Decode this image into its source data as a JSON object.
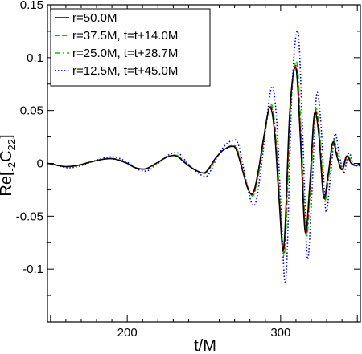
{
  "chart_data": {
    "type": "line",
    "title": "",
    "xlabel": "t/M",
    "ylabel": "Re[",
    "ylabel_sub_pre": "-2",
    "ylabel_mid": "C",
    "ylabel_sub_post": "22",
    "ylabel_close": "]",
    "xlim": [
      148,
      352
    ],
    "ylim": [
      -0.15,
      0.15
    ],
    "xticks": [
      {
        "value": 200,
        "label": "200"
      },
      {
        "value": 250,
        "label": ""
      },
      {
        "value": 300,
        "label": "300"
      }
    ],
    "yticks": [
      {
        "value": 0.15,
        "label": "0.15"
      },
      {
        "value": 0.1,
        "label": "0.1"
      },
      {
        "value": 0.05,
        "label": "0.05"
      },
      {
        "value": 0,
        "label": "0"
      },
      {
        "value": -0.05,
        "label": "-0.05"
      },
      {
        "value": -0.1,
        "label": "-0.1"
      }
    ],
    "grid": false,
    "legend_position": "top-left",
    "series": [
      {
        "name": "r=50.0M",
        "color": "#000000",
        "dash": "solid",
        "amp": 1.0,
        "shift": 0.0
      },
      {
        "name": "r=37.5M, t=t+14.0M",
        "color": "#e00000",
        "dash": "dashed",
        "amp": 1.02,
        "shift": 0.3
      },
      {
        "name": "r=25.0M, t=t+28.7M",
        "color": "#00cc00",
        "dash": "dashdot",
        "amp": 1.06,
        "shift": 0.6
      },
      {
        "name": "r=12.5M, t=t+45.0M",
        "color": "#0000dd",
        "dash": "dotted",
        "amp": 1.38,
        "shift": 1.4
      }
    ],
    "base_waveform": {
      "x": [
        148,
        155,
        160,
        167,
        175,
        185,
        192,
        200,
        205,
        212,
        220,
        226,
        232,
        238,
        244,
        250,
        253,
        257,
        262,
        268,
        271,
        275,
        279,
        282,
        285,
        289,
        293,
        296,
        299,
        302,
        306,
        310,
        313,
        316,
        319,
        322,
        325,
        328,
        331,
        334,
        337,
        340,
        343,
        346,
        349,
        352
      ],
      "y": [
        0.0,
        -0.002,
        -0.003,
        -0.002,
        0.001,
        0.004,
        0.004,
        0.0,
        -0.004,
        -0.005,
        0.001,
        0.006,
        0.007,
        0.0,
        -0.006,
        -0.009,
        -0.005,
        0.004,
        0.012,
        0.016,
        0.013,
        -0.006,
        -0.025,
        -0.028,
        -0.01,
        0.025,
        0.053,
        0.03,
        -0.035,
        -0.08,
        0.05,
        0.09,
        0.02,
        -0.065,
        -0.02,
        0.047,
        0.025,
        -0.032,
        -0.01,
        0.02,
        0.005,
        -0.006,
        0.007,
        0.0,
        -0.002,
        0.0
      ]
    }
  }
}
